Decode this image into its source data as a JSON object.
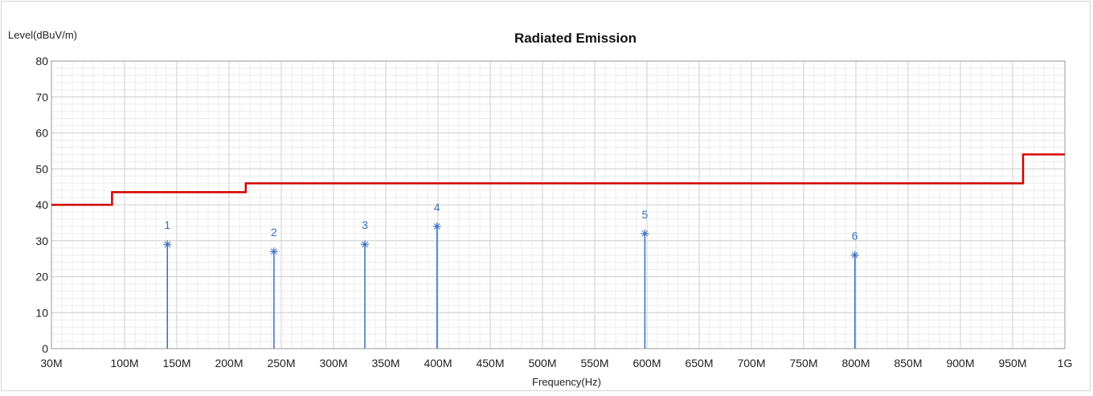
{
  "chart_data": {
    "type": "line",
    "title": "Radiated Emission",
    "ylabel": "Level(dBuV/m)",
    "xlabel": "Frequency(Hz)",
    "ylim": [
      0,
      80
    ],
    "xlim_mhz": [
      30,
      1000
    ],
    "y_ticks": [
      "0",
      "10",
      "20",
      "30",
      "40",
      "50",
      "60",
      "70",
      "80"
    ],
    "x_ticks": [
      {
        "mhz": 30,
        "label": "30M"
      },
      {
        "mhz": 100,
        "label": "100M"
      },
      {
        "mhz": 150,
        "label": "150M"
      },
      {
        "mhz": 200,
        "label": "200M"
      },
      {
        "mhz": 250,
        "label": "250M"
      },
      {
        "mhz": 300,
        "label": "300M"
      },
      {
        "mhz": 350,
        "label": "350M"
      },
      {
        "mhz": 400,
        "label": "400M"
      },
      {
        "mhz": 450,
        "label": "450M"
      },
      {
        "mhz": 500,
        "label": "500M"
      },
      {
        "mhz": 550,
        "label": "550M"
      },
      {
        "mhz": 600,
        "label": "600M"
      },
      {
        "mhz": 650,
        "label": "650M"
      },
      {
        "mhz": 700,
        "label": "700M"
      },
      {
        "mhz": 750,
        "label": "750M"
      },
      {
        "mhz": 800,
        "label": "800M"
      },
      {
        "mhz": 850,
        "label": "850M"
      },
      {
        "mhz": 900,
        "label": "900M"
      },
      {
        "mhz": 950,
        "label": "950M"
      },
      {
        "mhz": 1000,
        "label": "1G"
      }
    ],
    "grid": true,
    "series": [
      {
        "color": "#d40000",
        "step": true,
        "points": [
          [
            30,
            40
          ],
          [
            88,
            40
          ],
          [
            88,
            43.5
          ],
          [
            216,
            43.5
          ],
          [
            216,
            46
          ],
          [
            960,
            46
          ],
          [
            960,
            54
          ],
          [
            1000,
            54
          ]
        ]
      }
    ],
    "markers": [
      {
        "label": "1",
        "x_mhz": 141,
        "level": 29
      },
      {
        "label": "2",
        "x_mhz": 243,
        "level": 27
      },
      {
        "label": "3",
        "x_mhz": 330,
        "level": 29
      },
      {
        "label": "4",
        "x_mhz": 399,
        "level": 34
      },
      {
        "label": "5",
        "x_mhz": 598,
        "level": 32
      },
      {
        "label": "6",
        "x_mhz": 799,
        "level": 26
      }
    ],
    "marker_color": "#3a6fc0"
  }
}
